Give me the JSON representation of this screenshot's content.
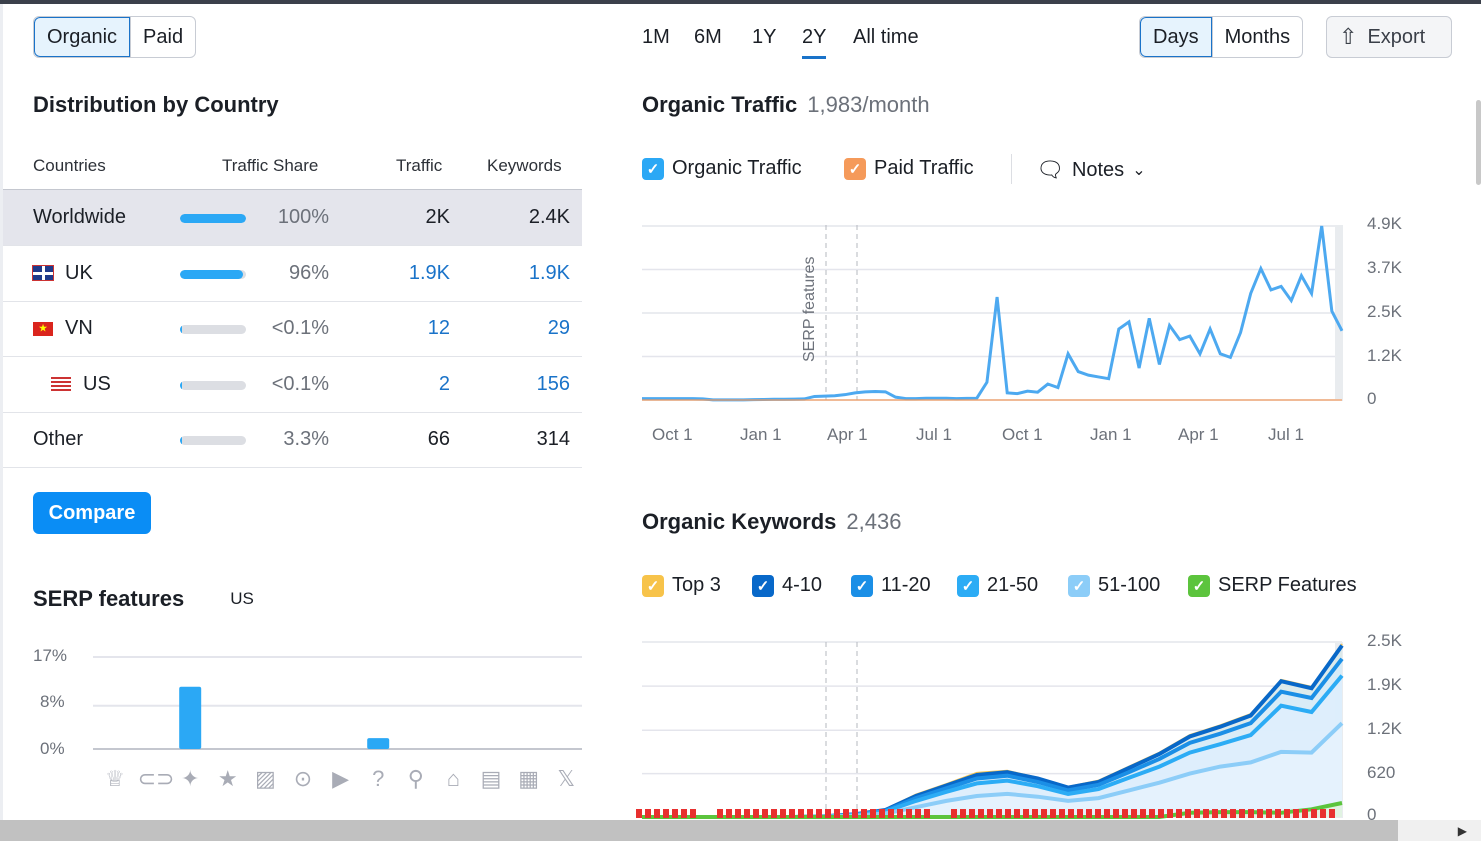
{
  "toggle": {
    "organic": "Organic",
    "paid": "Paid"
  },
  "distribution": {
    "title": "Distribution by Country",
    "headers": {
      "countries": "Countries",
      "share": "Traffic Share",
      "traffic": "Traffic",
      "keywords": "Keywords"
    },
    "rows": [
      {
        "name": "Worldwide",
        "share": "100%",
        "share_pct": 100,
        "traffic": "2K",
        "keywords": "2.4K"
      },
      {
        "name": "UK",
        "share": "96%",
        "share_pct": 96,
        "traffic": "1.9K",
        "keywords": "1.9K"
      },
      {
        "name": "VN",
        "share": "<0.1%",
        "share_pct": 0.1,
        "traffic": "12",
        "keywords": "29"
      },
      {
        "name": "US",
        "share": "<0.1%",
        "share_pct": 0.1,
        "traffic": "2",
        "keywords": "156"
      },
      {
        "name": "Other",
        "share": "3.3%",
        "share_pct": 3.3,
        "traffic": "66",
        "keywords": "314"
      }
    ]
  },
  "compare_label": "Compare",
  "serp": {
    "title": "SERP features",
    "country": "US"
  },
  "periods": [
    "1M",
    "6M",
    "1Y",
    "2Y",
    "All time"
  ],
  "active_period": "2Y",
  "granularity": {
    "days": "Days",
    "months": "Months"
  },
  "export_label": "Export",
  "traffic": {
    "title": "Organic Traffic",
    "value": "1,983/month",
    "legend": {
      "organic": "Organic Traffic",
      "paid": "Paid Traffic",
      "notes": "Notes"
    },
    "annotation": "SERP features"
  },
  "keywords": {
    "title": "Organic Keywords",
    "value": "2,436",
    "legend": [
      "Top 3",
      "4-10",
      "11-20",
      "21-50",
      "51-100",
      "SERP Features"
    ]
  },
  "colors": {
    "accent": "#1a73c9",
    "bar": "#2ba8f5",
    "organic": "#4da9f0",
    "paid": "#f59a5a",
    "top3": "#f7c34a",
    "k410": "#0868c9",
    "k1120": "#1b8fe6",
    "k2150": "#2cacf5",
    "k51100": "#8ccdf8",
    "serpf": "#5cc43d"
  },
  "chart_data": [
    {
      "type": "bar",
      "title": "SERP features",
      "categories": [
        "Featured snippet",
        "Sitelinks",
        "AI overview",
        "Reviews",
        "Image",
        "Video",
        "Video carousel",
        "People also ask",
        "Local pack",
        "Knowledge panel",
        "Top stories",
        "Jobs",
        "X (Twitter)"
      ],
      "icons": [
        "crown-icon",
        "link-icon",
        "ai-sparkle-icon",
        "star-icon",
        "image-icon",
        "video-icon",
        "video-carousel-icon",
        "question-icon",
        "location-pin-icon",
        "graduation-cap-icon",
        "news-icon",
        "briefcase-icon",
        "x-icon"
      ],
      "icon_glyphs": [
        "♕",
        "⊂⊃",
        "✦",
        "★",
        "▨",
        "⊙",
        "▶",
        "?",
        "⚲",
        "⌂",
        "▤",
        "▦",
        "𝕏"
      ],
      "values": [
        0,
        0,
        11.5,
        0,
        0,
        0,
        0,
        2,
        0,
        0,
        0,
        0,
        0
      ],
      "yticks": [
        "17%",
        "8%",
        "0%"
      ],
      "ylim": [
        0,
        17
      ]
    },
    {
      "type": "line",
      "title": "Organic Traffic",
      "xticks": [
        "Oct 1",
        "Jan 1",
        "Apr 1",
        "Jul 1",
        "Oct 1",
        "Jan 1",
        "Apr 1",
        "Jul 1"
      ],
      "yticks": [
        "4.9K",
        "3.7K",
        "2.5K",
        "1.2K",
        "0"
      ],
      "ylim": [
        0,
        4900
      ],
      "series": [
        {
          "name": "Organic Traffic",
          "values": [
            40,
            40,
            40,
            40,
            40,
            40,
            30,
            5,
            5,
            5,
            5,
            10,
            15,
            20,
            20,
            25,
            30,
            100,
            110,
            120,
            150,
            200,
            230,
            240,
            230,
            80,
            40,
            40,
            50,
            50,
            50,
            40,
            45,
            50,
            500,
            2900,
            200,
            180,
            250,
            220,
            450,
            350,
            1300,
            800,
            700,
            650,
            600,
            2000,
            2200,
            900,
            2300,
            1000,
            2100,
            1700,
            1800,
            1300,
            2000,
            1300,
            1200,
            1900,
            3000,
            3700,
            3100,
            3200,
            2800,
            3500,
            3000,
            4900,
            2500,
            1950
          ]
        },
        {
          "name": "Paid Traffic",
          "values": [
            0,
            0,
            0,
            0,
            0,
            0,
            0,
            0,
            0,
            0
          ]
        }
      ]
    },
    {
      "type": "area",
      "title": "Organic Keywords",
      "yticks": [
        "2.5K",
        "1.9K",
        "1.2K",
        "620",
        "0"
      ],
      "ylim": [
        0,
        2500
      ],
      "series": [
        {
          "name": "Top 3",
          "values": [
            0,
            0,
            0,
            0,
            0,
            0,
            10,
            45,
            110,
            320,
            470,
            630,
            660,
            560,
            430,
            520,
            720,
            920,
            1170,
            1310,
            1470,
            1960,
            1860,
            2470
          ]
        },
        {
          "name": "4-10",
          "values": [
            0,
            0,
            0,
            0,
            0,
            0,
            10,
            40,
            100,
            300,
            450,
            600,
            640,
            550,
            420,
            500,
            700,
            900,
            1150,
            1290,
            1450,
            1940,
            1840,
            2450
          ]
        },
        {
          "name": "11-20",
          "values": [
            0,
            0,
            0,
            0,
            0,
            0,
            8,
            35,
            90,
            270,
            410,
            550,
            590,
            500,
            380,
            460,
            640,
            830,
            1060,
            1190,
            1340,
            1790,
            1700,
            2260
          ]
        },
        {
          "name": "21-50",
          "values": [
            0,
            0,
            0,
            0,
            0,
            0,
            6,
            30,
            80,
            230,
            360,
            480,
            520,
            440,
            330,
            400,
            560,
            720,
            920,
            1040,
            1170,
            1590,
            1500,
            2020
          ]
        },
        {
          "name": "51-100",
          "values": [
            0,
            0,
            0,
            0,
            0,
            0,
            4,
            20,
            50,
            140,
            230,
            300,
            330,
            290,
            230,
            270,
            380,
            490,
            620,
            720,
            780,
            930,
            920,
            1340
          ]
        },
        {
          "name": "SERP Features",
          "values": [
            0,
            0,
            0,
            0,
            0,
            0,
            0,
            0,
            0,
            0,
            0,
            0,
            0,
            0,
            0,
            0,
            0,
            0,
            60,
            70,
            70,
            60,
            110,
            200
          ]
        }
      ]
    }
  ]
}
